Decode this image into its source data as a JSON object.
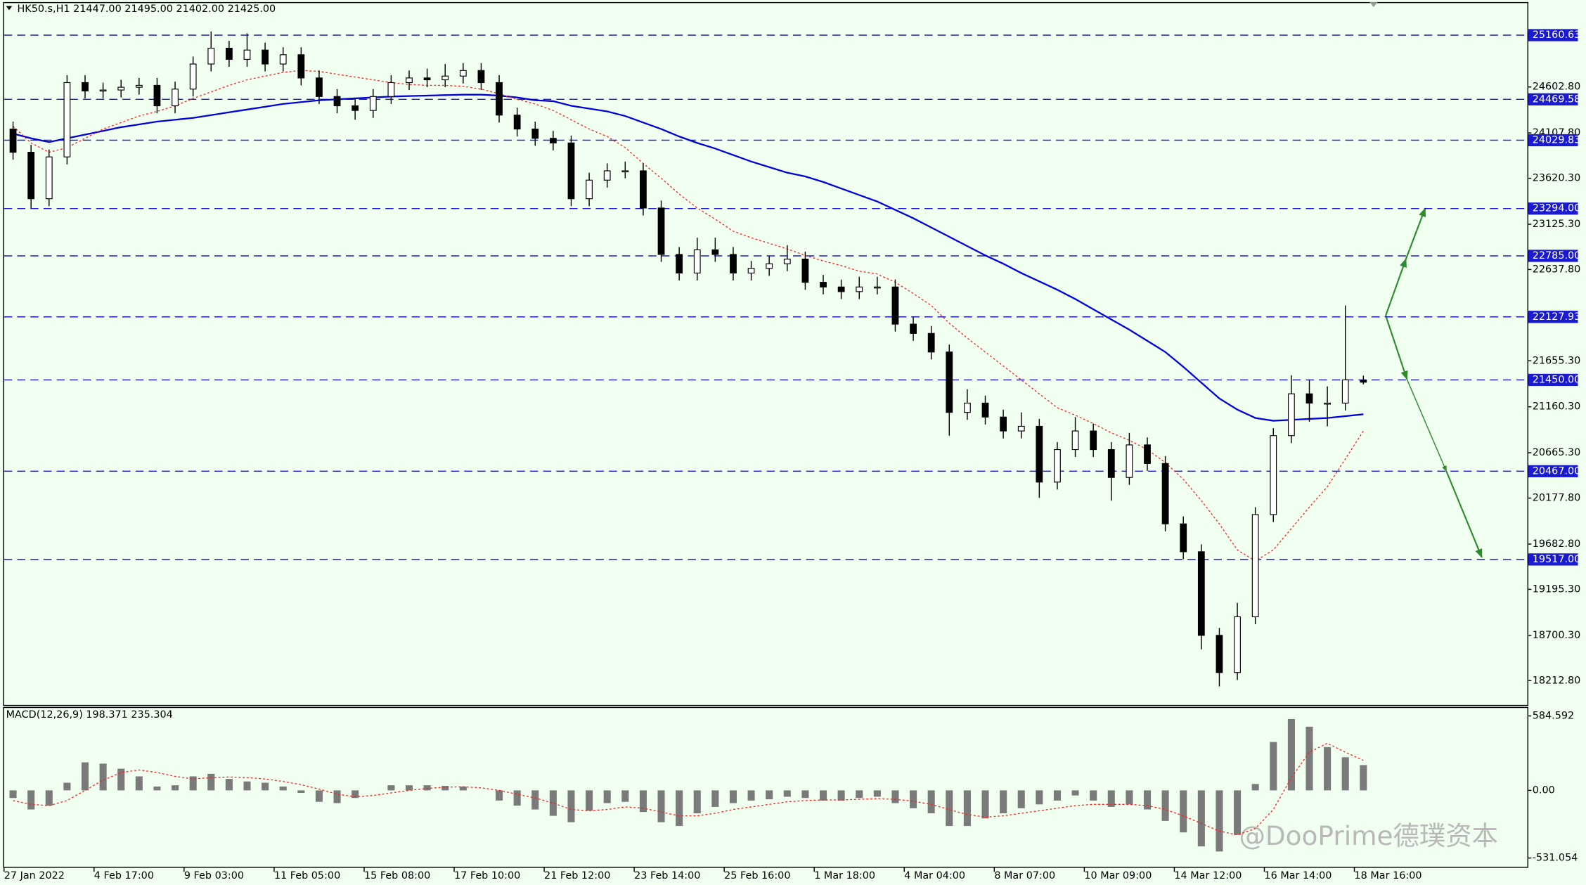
{
  "chart_data": [
    {
      "type": "candlestick",
      "title": "HK50.s,H1  21447.00 21495.00 21402.00 21425.00",
      "categories": [
        "27 Jan 2022",
        null,
        null,
        null,
        null,
        "4 Feb 17:00",
        null,
        null,
        null,
        null,
        "9 Feb 03:00",
        null,
        null,
        null,
        null,
        "11 Feb 05:00",
        null,
        null,
        null,
        null,
        "15 Feb 08:00",
        null,
        null,
        null,
        null,
        "17 Feb 10:00",
        null,
        null,
        null,
        null,
        "21 Feb 12:00",
        null,
        null,
        null,
        null,
        "23 Feb 14:00",
        null,
        null,
        null,
        null,
        "25 Feb 16:00",
        null,
        null,
        null,
        null,
        "1 Mar 18:00",
        null,
        null,
        null,
        null,
        "4 Mar 04:00",
        null,
        null,
        null,
        null,
        "8 Mar 07:00",
        null,
        null,
        null,
        null,
        "10 Mar 09:00",
        null,
        null,
        null,
        null,
        "14 Mar 12:00",
        null,
        null,
        null,
        null,
        "16 Mar 14:00",
        null,
        null,
        null,
        null,
        "18 Mar 16:00"
      ],
      "open": [
        24150,
        23900,
        23400,
        23850,
        24650,
        24560,
        24570,
        24600,
        24620,
        24400,
        24580,
        24850,
        25020,
        24900,
        25000,
        24850,
        24950,
        24700,
        24500,
        24400,
        24350,
        24500,
        24650,
        24700,
        24680,
        24720,
        24780,
        24650,
        24300,
        24150,
        24050,
        24000,
        23400,
        23600,
        23700,
        23700,
        23300,
        22800,
        22600,
        22850,
        22800,
        22600,
        22650,
        22700,
        22750,
        22500,
        22450,
        22400,
        22450,
        22450,
        22050,
        21950,
        21750,
        21100,
        21200,
        21050,
        20900,
        20950,
        20350,
        20700,
        20900,
        20700,
        20400,
        20750,
        20550,
        19900,
        19600,
        18700,
        18300,
        18900,
        20000,
        20850,
        21300,
        21200,
        21200,
        21447
      ],
      "high": [
        24230,
        23980,
        23930,
        24730,
        24730,
        24650,
        24680,
        24700,
        24700,
        24660,
        24930,
        25200,
        25100,
        25180,
        25080,
        25030,
        25030,
        24780,
        24580,
        24480,
        24580,
        24730,
        24780,
        24800,
        24850,
        24860,
        24860,
        24730,
        24380,
        24230,
        24130,
        24080,
        23680,
        23780,
        23800,
        23780,
        23380,
        22880,
        22980,
        22980,
        22880,
        22730,
        22780,
        22900,
        22830,
        22580,
        22530,
        22560,
        22560,
        22530,
        22130,
        22030,
        21830,
        21350,
        21280,
        21130,
        21100,
        21030,
        20780,
        21050,
        20980,
        20780,
        20880,
        20830,
        20630,
        19980,
        19680,
        18780,
        19050,
        20080,
        20930,
        21500,
        21450,
        21380,
        22250,
        21495
      ],
      "low": [
        23820,
        23300,
        23320,
        23770,
        24480,
        24480,
        24490,
        24520,
        24320,
        24320,
        24500,
        24770,
        24820,
        24820,
        24770,
        24770,
        24620,
        24420,
        24320,
        24250,
        24270,
        24420,
        24570,
        24600,
        24600,
        24640,
        24570,
        24220,
        24070,
        23970,
        23920,
        23320,
        23320,
        23520,
        23620,
        23220,
        22720,
        22520,
        22520,
        22720,
        22520,
        22520,
        22570,
        22620,
        22420,
        22370,
        22320,
        22320,
        22370,
        21970,
        21870,
        21670,
        20850,
        21020,
        20970,
        20820,
        20820,
        20180,
        20270,
        20620,
        20620,
        20150,
        20320,
        20470,
        19820,
        19520,
        18550,
        18150,
        18220,
        18820,
        19920,
        20770,
        21000,
        20950,
        21120,
        21402
      ],
      "close": [
        23900,
        23400,
        23850,
        24650,
        24560,
        24570,
        24600,
        24620,
        24400,
        24580,
        24850,
        25020,
        24900,
        25000,
        24850,
        24950,
        24700,
        24500,
        24400,
        24350,
        24500,
        24650,
        24700,
        24680,
        24720,
        24780,
        24650,
        24300,
        24150,
        24050,
        24000,
        23400,
        23600,
        23700,
        23700,
        23300,
        22800,
        22600,
        22850,
        22800,
        22600,
        22650,
        22700,
        22750,
        22500,
        22450,
        22400,
        22450,
        22450,
        22050,
        21950,
        21750,
        21100,
        21200,
        21050,
        20900,
        20950,
        20350,
        20700,
        20900,
        20700,
        20400,
        20750,
        20550,
        19900,
        19600,
        18700,
        18300,
        18900,
        20000,
        20850,
        21300,
        21200,
        21200,
        21450,
        21425
      ],
      "up_color": "#ffffff",
      "down_color": "#000000",
      "lines": [
        {
          "color": "#0000dd",
          "style": "solid",
          "values": [
            24100,
            24050,
            24010,
            24050,
            24090,
            24130,
            24170,
            24200,
            24230,
            24250,
            24270,
            24300,
            24330,
            24360,
            24390,
            24420,
            24440,
            24460,
            24470,
            24480,
            24490,
            24500,
            24505,
            24510,
            24515,
            24520,
            24520,
            24510,
            24490,
            24460,
            24450,
            24400,
            24370,
            24340,
            24290,
            24220,
            24150,
            24070,
            24000,
            23940,
            23870,
            23800,
            23740,
            23680,
            23640,
            23580,
            23510,
            23440,
            23370,
            23280,
            23190,
            23090,
            22990,
            22890,
            22790,
            22700,
            22600,
            22510,
            22420,
            22320,
            22210,
            22100,
            21990,
            21870,
            21750,
            21590,
            21420,
            21250,
            21130,
            21040,
            21010,
            21020,
            21030,
            21040,
            21060,
            21080
          ]
        },
        {
          "color": "#ff2020",
          "style": "dotted",
          "values": [
            24180,
            24000,
            23900,
            23950,
            24050,
            24150,
            24220,
            24290,
            24340,
            24400,
            24480,
            24550,
            24620,
            24680,
            24720,
            24760,
            24780,
            24770,
            24740,
            24710,
            24680,
            24650,
            24630,
            24620,
            24620,
            24610,
            24580,
            24530,
            24470,
            24420,
            24350,
            24250,
            24150,
            24070,
            23950,
            23780,
            23620,
            23450,
            23300,
            23180,
            23050,
            22980,
            22920,
            22860,
            22790,
            22730,
            22680,
            22620,
            22590,
            22500,
            22380,
            22250,
            22060,
            21900,
            21750,
            21600,
            21450,
            21300,
            21150,
            21070,
            20980,
            20880,
            20800,
            20700,
            20560,
            20380,
            20150,
            19900,
            19620,
            19500,
            19620,
            19850,
            20080,
            20300,
            20600,
            20900
          ]
        }
      ],
      "levels": [
        25160.63,
        24469.58,
        24029.83,
        {
          "value": 23294,
          "label": "23294.00"
        },
        {
          "value": 22785,
          "label": "22785.00"
        },
        22127.93,
        {
          "value": 21450,
          "label": "21450.00"
        },
        {
          "value": 20467,
          "label": "20467.00"
        },
        {
          "value": 19517,
          "label": "19517.00"
        },
        22127.93
      ],
      "level_color": "#1a1ad0",
      "ylim": [
        17951,
        25506
      ],
      "yticks": [
        {
          "value": 24602.8,
          "label": "24602.80"
        },
        {
          "value": 24107.8,
          "label": "24107.80"
        },
        {
          "value": 23620.3,
          "label": "23620.30"
        },
        {
          "value": 23125.3,
          "label": "23125.30"
        },
        {
          "value": 22637.8,
          "label": "22637.80"
        },
        {
          "value": 21655.3,
          "label": "21655.30"
        },
        {
          "value": 21160.3,
          "label": "21160.30"
        },
        {
          "value": 20665.3,
          "label": "20665.30"
        },
        {
          "value": 20177.8,
          "label": "20177.80"
        },
        {
          "value": 19682.8,
          "label": "19682.80"
        },
        {
          "value": 19195.3,
          "label": "19195.30"
        },
        {
          "value": 18700.3,
          "label": "18700.30"
        },
        {
          "value": 18212.8,
          "label": "18212.80"
        }
      ],
      "watermark": "@DooPrime德璞资本"
    },
    {
      "type": "bar",
      "title": "MACD(12,26,9) 198.371 235.304",
      "color": "#7a7a7a",
      "values": [
        -60,
        -150,
        -120,
        60,
        220,
        210,
        170,
        110,
        30,
        40,
        110,
        130,
        90,
        70,
        60,
        30,
        -20,
        -90,
        -100,
        -60,
        0,
        40,
        40,
        40,
        35,
        30,
        0,
        -80,
        -120,
        -150,
        -200,
        -250,
        -160,
        -100,
        -90,
        -170,
        -250,
        -280,
        -180,
        -130,
        -100,
        -80,
        -70,
        -50,
        -60,
        -80,
        -80,
        -60,
        -50,
        -100,
        -140,
        -180,
        -280,
        -280,
        -220,
        -180,
        -140,
        -110,
        -80,
        -40,
        -80,
        -130,
        -110,
        -150,
        -240,
        -330,
        -440,
        -480,
        -350,
        50,
        380,
        560,
        500,
        340,
        260,
        198.371
      ],
      "signal": {
        "color": "#ff2020",
        "values": [
          -80,
          -110,
          -120,
          -80,
          0,
          80,
          140,
          160,
          140,
          110,
          90,
          100,
          105,
          100,
          90,
          70,
          45,
          10,
          -30,
          -50,
          -40,
          -20,
          0,
          15,
          25,
          28,
          20,
          0,
          -30,
          -60,
          -100,
          -150,
          -160,
          -150,
          -130,
          -140,
          -170,
          -200,
          -200,
          -180,
          -150,
          -130,
          -110,
          -90,
          -80,
          -75,
          -75,
          -70,
          -65,
          -70,
          -85,
          -110,
          -150,
          -190,
          -210,
          -200,
          -180,
          -160,
          -140,
          -120,
          -110,
          -110,
          -110,
          -120,
          -150,
          -200,
          -260,
          -320,
          -350,
          -300,
          -150,
          100,
          300,
          370,
          300,
          235.304
        ]
      },
      "ylim": [
        -600,
        647
      ],
      "yticks": [
        584.592,
        {
          "value": 0,
          "label": "0.00"
        },
        -531.054
      ]
    }
  ]
}
